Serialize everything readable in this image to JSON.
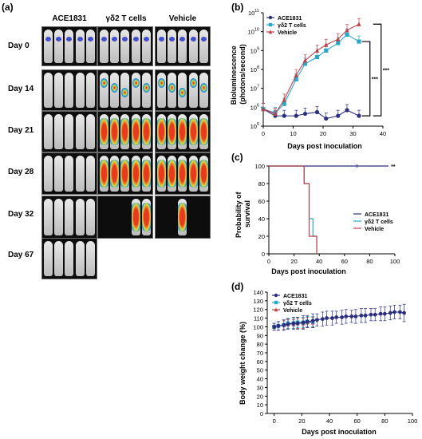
{
  "figure": {
    "panel_labels": {
      "a": "(a)",
      "b": "(b)",
      "c": "(c)",
      "d": "(d)"
    },
    "imaging": {
      "columns": [
        "ACE1831",
        "γδ2 T cells",
        "Vehicle"
      ],
      "rows": [
        "Day 0",
        "Day 14",
        "Day 21",
        "Day 28",
        "Day 32",
        "Day 67"
      ]
    }
  },
  "chart_data": [
    {
      "id": "b",
      "type": "line",
      "title": "",
      "xlabel": "Days post inoculation",
      "ylabel": "Bioluminescence\n(photons/second)",
      "xlim": [
        0,
        40
      ],
      "ylim_log10": [
        5,
        11
      ],
      "yscale": "log",
      "xticks": [
        0,
        10,
        20,
        30,
        40
      ],
      "yticks_log10": [
        5,
        6,
        7,
        8,
        9,
        10,
        11
      ],
      "legend": "top-left",
      "annotations": [
        "***",
        "***"
      ],
      "series": [
        {
          "name": "ACE1831",
          "color": "#2b2f7e",
          "marker": "circle",
          "x": [
            0,
            4,
            7,
            11,
            14,
            18,
            21,
            25,
            28,
            32
          ],
          "y": [
            800000,
            350000,
            350000,
            350000,
            450000,
            550000,
            250000,
            350000,
            700000,
            350000
          ]
        },
        {
          "name": "γδ2 T cells",
          "color": "#29a9c9",
          "marker": "square",
          "x": [
            0,
            4,
            7,
            11,
            14,
            18,
            21,
            25,
            28,
            32
          ],
          "y": [
            800000,
            500000,
            1500000,
            30000000,
            200000000,
            450000000,
            1000000000,
            2500000000,
            7000000000,
            3000000000
          ]
        },
        {
          "name": "Vehicle",
          "color": "#c0404a",
          "marker": "triangle",
          "x": [
            0,
            4,
            7,
            11,
            14,
            18,
            21,
            25,
            28,
            32
          ],
          "y": [
            800000,
            450000,
            2500000,
            50000000,
            300000000,
            1000000000,
            2000000000,
            4000000000,
            12000000000,
            25000000000
          ]
        }
      ]
    },
    {
      "id": "c",
      "type": "line",
      "title": "",
      "xlabel": "Days post inoculation",
      "ylabel": "Probability of\nsurvival",
      "xlim": [
        0,
        100
      ],
      "ylim": [
        0,
        100
      ],
      "xticks": [
        0,
        20,
        40,
        60,
        80,
        100
      ],
      "yticks": [
        0,
        20,
        40,
        60,
        80,
        100
      ],
      "legend": "right",
      "annotations": [
        "**"
      ],
      "series": [
        {
          "name": "ACE1831",
          "color": "#2b2f7e",
          "step": true,
          "x": [
            0,
            95
          ],
          "y": [
            100,
            100
          ]
        },
        {
          "name": "γδ2 T cells",
          "color": "#29a9c9",
          "step": true,
          "x": [
            0,
            28,
            32,
            35,
            38
          ],
          "y": [
            100,
            80,
            40,
            20,
            0
          ]
        },
        {
          "name": "Vehicle",
          "color": "#c0404a",
          "step": true,
          "x": [
            0,
            28,
            32,
            35,
            38
          ],
          "y": [
            100,
            80,
            20,
            20,
            0
          ]
        }
      ]
    },
    {
      "id": "d",
      "type": "line",
      "title": "",
      "xlabel": "Days post inoculation",
      "ylabel": "Body weight change (%)",
      "xlim": [
        -5,
        100
      ],
      "ylim": [
        0,
        140
      ],
      "xticks": [
        0,
        20,
        40,
        60,
        80,
        100
      ],
      "yticks": [
        0,
        10,
        20,
        30,
        40,
        50,
        60,
        70,
        80,
        90,
        100,
        110,
        120,
        130,
        140
      ],
      "legend": "top-left",
      "series": [
        {
          "name": "ACE1831",
          "color": "#2b2f7e",
          "marker": "circle",
          "x": [
            0,
            3,
            7,
            10,
            14,
            17,
            21,
            24,
            28,
            31,
            35,
            38,
            42,
            45,
            49,
            52,
            56,
            59,
            63,
            66,
            70,
            73,
            77,
            80,
            84,
            87,
            91,
            94
          ],
          "y": [
            100,
            101,
            102,
            103,
            104,
            104,
            105,
            106,
            107,
            108,
            109,
            110,
            110,
            111,
            111,
            112,
            112,
            112,
            113,
            113,
            114,
            114,
            115,
            115,
            116,
            117,
            117,
            116
          ],
          "err": [
            4,
            5,
            6,
            6,
            7,
            7,
            8,
            7,
            8,
            7,
            8,
            8,
            8,
            7,
            8,
            8,
            7,
            8,
            8,
            8,
            7,
            7,
            8,
            8,
            8,
            8,
            8,
            10
          ]
        },
        {
          "name": "γδ2 T cells",
          "color": "#29a9c9",
          "marker": "square",
          "x": [
            0,
            3,
            7,
            10,
            14,
            17,
            21,
            24,
            28
          ],
          "y": [
            100,
            101,
            102,
            104,
            104,
            105,
            105,
            106,
            106
          ],
          "err": [
            4,
            5,
            6,
            6,
            6,
            6,
            6,
            6,
            6
          ]
        },
        {
          "name": "Vehicle",
          "color": "#c0404a",
          "marker": "triangle",
          "x": [
            0,
            3,
            7,
            10,
            14,
            17,
            21,
            24,
            28
          ],
          "y": [
            100,
            101,
            102,
            103,
            103,
            104,
            104,
            105,
            105
          ],
          "err": [
            4,
            5,
            5,
            5,
            5,
            6,
            6,
            6,
            6
          ]
        }
      ]
    }
  ]
}
